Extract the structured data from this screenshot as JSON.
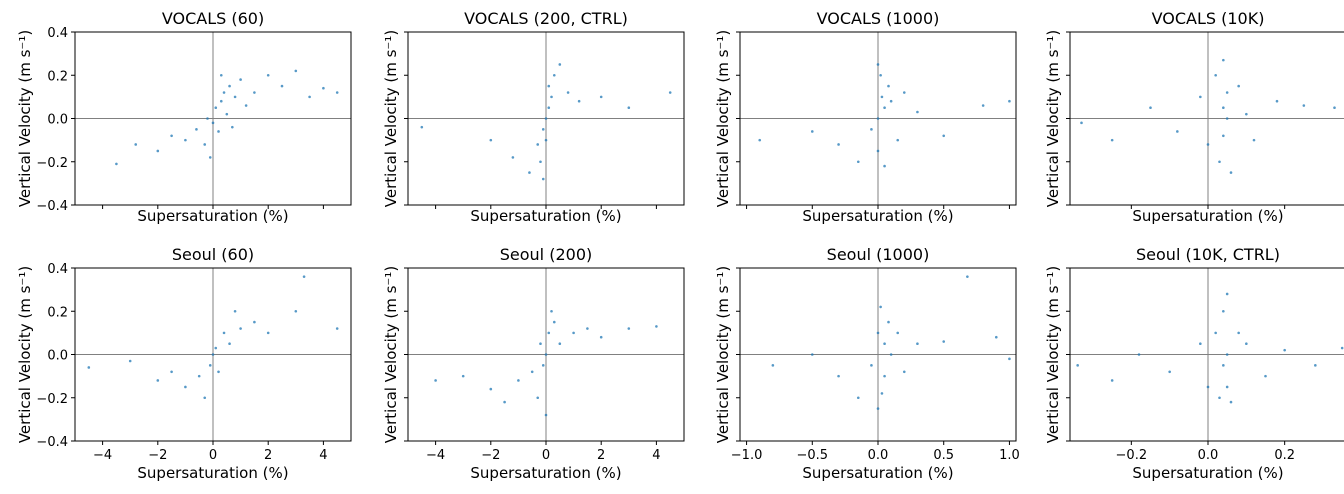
{
  "chart_data": [
    {
      "type": "scatter",
      "title": "VOCALS (60)",
      "xlabel": "Supersaturation (%)",
      "ylabel": "Vertical Velocity (m s⁻¹)",
      "color": "#1f77b4",
      "x": [
        -3.5,
        -2.8,
        -2,
        -1.5,
        -1,
        -0.6,
        -0.3,
        -0.1,
        0,
        0.1,
        0.2,
        0.3,
        0.4,
        0.5,
        0.6,
        0.8,
        1,
        1.2,
        1.5,
        2,
        2.5,
        3,
        3.5,
        4,
        4.5,
        -0.2,
        0.3,
        0.7
      ],
      "y": [
        -0.21,
        -0.12,
        -0.15,
        -0.08,
        -0.1,
        -0.05,
        -0.12,
        -0.18,
        -0.02,
        0.05,
        -0.06,
        0.08,
        0.12,
        0.02,
        0.15,
        0.1,
        0.18,
        0.06,
        0.12,
        0.2,
        0.15,
        0.22,
        0.1,
        0.14,
        0.12,
        0.0,
        0.2,
        -0.04
      ],
      "xlim": [
        -5,
        5
      ],
      "ylim": [
        -0.4,
        0.4
      ],
      "xticks": [
        -4,
        -2,
        0,
        2,
        4
      ],
      "yticks": [
        0.4,
        0.2,
        {
          "value": 0,
          "label": "0.0"
        },
        {
          "value": -0.2,
          "label": "−0.2"
        },
        {
          "value": -0.4,
          "label": "−0.4"
        }
      ],
      "reference_lines": {
        "x": 0,
        "y": 0
      }
    },
    {
      "type": "scatter",
      "title": "VOCALS (200, CTRL)",
      "xlabel": "Supersaturation (%)",
      "ylabel": "Vertical Velocity (m s⁻¹)",
      "color": "#1f77b4",
      "x": [
        -4.5,
        -2,
        -1.2,
        -0.6,
        -0.3,
        -0.2,
        -0.1,
        0,
        0,
        0.1,
        0.1,
        0.2,
        0.3,
        0.5,
        0.8,
        1.2,
        2,
        3,
        4.5,
        -0.1
      ],
      "y": [
        -0.04,
        -0.1,
        -0.18,
        -0.25,
        -0.12,
        -0.2,
        -0.05,
        0.0,
        -0.1,
        0.05,
        0.15,
        0.1,
        0.2,
        0.25,
        0.12,
        0.08,
        0.1,
        0.05,
        0.12,
        -0.28
      ],
      "xlim": [
        -5,
        5
      ],
      "ylim": [
        -0.4,
        0.4
      ],
      "xticks": [
        -4,
        -2,
        0,
        2,
        4
      ],
      "yticks": [
        0.4,
        0.2,
        0,
        -0.2,
        -0.4
      ],
      "reference_lines": {
        "x": 0,
        "y": 0
      }
    },
    {
      "type": "scatter",
      "title": "VOCALS (1000)",
      "xlabel": "Supersaturation (%)",
      "ylabel": "Vertical Velocity (m s⁻¹)",
      "color": "#1f77b4",
      "x": [
        -0.9,
        -0.5,
        -0.3,
        -0.15,
        -0.05,
        0,
        0,
        0.02,
        0.03,
        0.05,
        0.05,
        0.08,
        0.1,
        0.15,
        0.2,
        0.3,
        0.5,
        0.8,
        1.0,
        0.0
      ],
      "y": [
        -0.1,
        -0.06,
        -0.12,
        -0.2,
        -0.05,
        0.0,
        -0.15,
        0.2,
        0.1,
        -0.22,
        0.05,
        0.15,
        0.08,
        -0.1,
        0.12,
        0.03,
        -0.08,
        0.06,
        0.08,
        0.25
      ],
      "xlim": [
        -1.05,
        1.05
      ],
      "ylim": [
        -0.4,
        0.4
      ],
      "xticks": [
        -1,
        -0.5,
        0,
        0.5,
        1
      ],
      "yticks": [
        0.4,
        0.2,
        0,
        -0.2,
        -0.4
      ],
      "reference_lines": {
        "x": 0,
        "y": 0
      }
    },
    {
      "type": "scatter",
      "title": "VOCALS (10K)",
      "xlabel": "Supersaturation (%)",
      "ylabel": "Vertical Velocity (m s⁻¹)",
      "color": "#1f77b4",
      "x": [
        -0.33,
        -0.25,
        -0.15,
        -0.08,
        -0.02,
        0.0,
        0.02,
        0.03,
        0.04,
        0.04,
        0.05,
        0.05,
        0.06,
        0.08,
        0.1,
        0.12,
        0.18,
        0.25,
        0.33,
        0.04
      ],
      "y": [
        -0.02,
        -0.1,
        0.05,
        -0.06,
        0.1,
        -0.12,
        0.2,
        -0.2,
        0.05,
        -0.08,
        0.12,
        0.0,
        -0.25,
        0.15,
        0.02,
        -0.1,
        0.08,
        0.06,
        0.05,
        0.27
      ],
      "xlim": [
        -0.36,
        0.36
      ],
      "ylim": [
        -0.4,
        0.4
      ],
      "xticks": [
        -0.2,
        0,
        0.2
      ],
      "yticks": [
        0.4,
        0.2,
        0,
        -0.2,
        -0.4
      ],
      "reference_lines": {
        "x": 0,
        "y": 0
      }
    },
    {
      "type": "scatter",
      "title": "Seoul (60)",
      "xlabel": "Supersaturation (%)",
      "ylabel": "Vertical Velocity (m s⁻¹)",
      "color": "#1f77b4",
      "x": [
        -4.5,
        -3,
        -2,
        -1.5,
        -1,
        -0.5,
        -0.3,
        -0.1,
        0,
        0.1,
        0.2,
        0.4,
        0.6,
        0.8,
        1,
        1.5,
        2,
        3,
        3.3,
        4.5
      ],
      "y": [
        -0.06,
        -0.03,
        -0.12,
        -0.08,
        -0.15,
        -0.1,
        -0.2,
        -0.05,
        0.0,
        0.03,
        -0.08,
        0.1,
        0.05,
        0.2,
        0.12,
        0.15,
        0.1,
        0.2,
        0.36,
        0.12
      ],
      "xlim": [
        -5,
        5
      ],
      "ylim": [
        -0.4,
        0.4
      ],
      "xticks": [
        {
          "value": -4,
          "label": "−4"
        },
        {
          "value": -2,
          "label": "−2"
        },
        0,
        2,
        4
      ],
      "yticks": [
        0.4,
        0.2,
        {
          "value": 0,
          "label": "0.0"
        },
        {
          "value": -0.2,
          "label": "−0.2"
        },
        {
          "value": -0.4,
          "label": "−0.4"
        }
      ],
      "reference_lines": {
        "x": 0,
        "y": 0
      }
    },
    {
      "type": "scatter",
      "title": "Seoul (200)",
      "xlabel": "Supersaturation (%)",
      "ylabel": "Vertical Velocity (m s⁻¹)",
      "color": "#1f77b4",
      "x": [
        -4,
        -3,
        -2,
        -1.5,
        -1,
        -0.5,
        -0.3,
        -0.1,
        0,
        0,
        0.1,
        0.2,
        0.3,
        0.5,
        1,
        1.5,
        2,
        3,
        4,
        -0.2
      ],
      "y": [
        -0.12,
        -0.1,
        -0.16,
        -0.22,
        -0.12,
        -0.08,
        -0.2,
        -0.05,
        0.0,
        -0.28,
        0.1,
        0.2,
        0.15,
        0.05,
        0.1,
        0.12,
        0.08,
        0.12,
        0.13,
        0.05
      ],
      "xlim": [
        -5,
        5
      ],
      "ylim": [
        -0.4,
        0.4
      ],
      "xticks": [
        {
          "value": -4,
          "label": "−4"
        },
        {
          "value": -2,
          "label": "−2"
        },
        0,
        2,
        4
      ],
      "yticks": [
        0.4,
        0.2,
        0,
        -0.2,
        -0.4
      ],
      "reference_lines": {
        "x": 0,
        "y": 0
      }
    },
    {
      "type": "scatter",
      "title": "Seoul (1000)",
      "xlabel": "Supersaturation (%)",
      "ylabel": "Vertical Velocity (m s⁻¹)",
      "color": "#1f77b4",
      "x": [
        -0.8,
        -0.5,
        -0.3,
        -0.15,
        -0.05,
        0,
        0.02,
        0.03,
        0.05,
        0.05,
        0.08,
        0.1,
        0.15,
        0.2,
        0.3,
        0.5,
        0.68,
        0.9,
        1.0,
        0.0
      ],
      "y": [
        -0.05,
        0.0,
        -0.1,
        -0.2,
        -0.05,
        0.1,
        0.22,
        -0.18,
        0.05,
        -0.1,
        0.15,
        0.0,
        0.1,
        -0.08,
        0.05,
        0.06,
        0.36,
        0.08,
        -0.02,
        -0.25
      ],
      "xlim": [
        -1.05,
        1.05
      ],
      "ylim": [
        -0.4,
        0.4
      ],
      "xticks": [
        {
          "value": -1,
          "label": "−1.0"
        },
        {
          "value": -0.5,
          "label": "−0.5"
        },
        {
          "value": 0,
          "label": "0.0"
        },
        0.5,
        {
          "value": 1,
          "label": "1.0"
        }
      ],
      "yticks": [
        0.4,
        0.2,
        0,
        -0.2,
        -0.4
      ],
      "reference_lines": {
        "x": 0,
        "y": 0
      }
    },
    {
      "type": "scatter",
      "title": "Seoul (10K, CTRL)",
      "xlabel": "Supersaturation (%)",
      "ylabel": "Vertical Velocity (m s⁻¹)",
      "color": "#1f77b4",
      "x": [
        -0.34,
        -0.25,
        -0.18,
        -0.1,
        -0.02,
        0.0,
        0.02,
        0.03,
        0.04,
        0.04,
        0.05,
        0.05,
        0.06,
        0.08,
        0.1,
        0.15,
        0.2,
        0.28,
        0.35,
        0.05
      ],
      "y": [
        -0.05,
        -0.12,
        0.0,
        -0.08,
        0.05,
        -0.15,
        0.1,
        -0.2,
        0.2,
        -0.05,
        0.28,
        0.0,
        -0.22,
        0.1,
        0.05,
        -0.1,
        0.02,
        -0.05,
        0.03,
        -0.15
      ],
      "xlim": [
        -0.36,
        0.36
      ],
      "ylim": [
        -0.4,
        0.4
      ],
      "xticks": [
        {
          "value": -0.2,
          "label": "−0.2"
        },
        {
          "value": 0,
          "label": "0.0"
        },
        0.2
      ],
      "yticks": [
        0.4,
        0.2,
        0,
        -0.2,
        -0.4
      ],
      "reference_lines": {
        "x": 0,
        "y": 0
      }
    }
  ]
}
